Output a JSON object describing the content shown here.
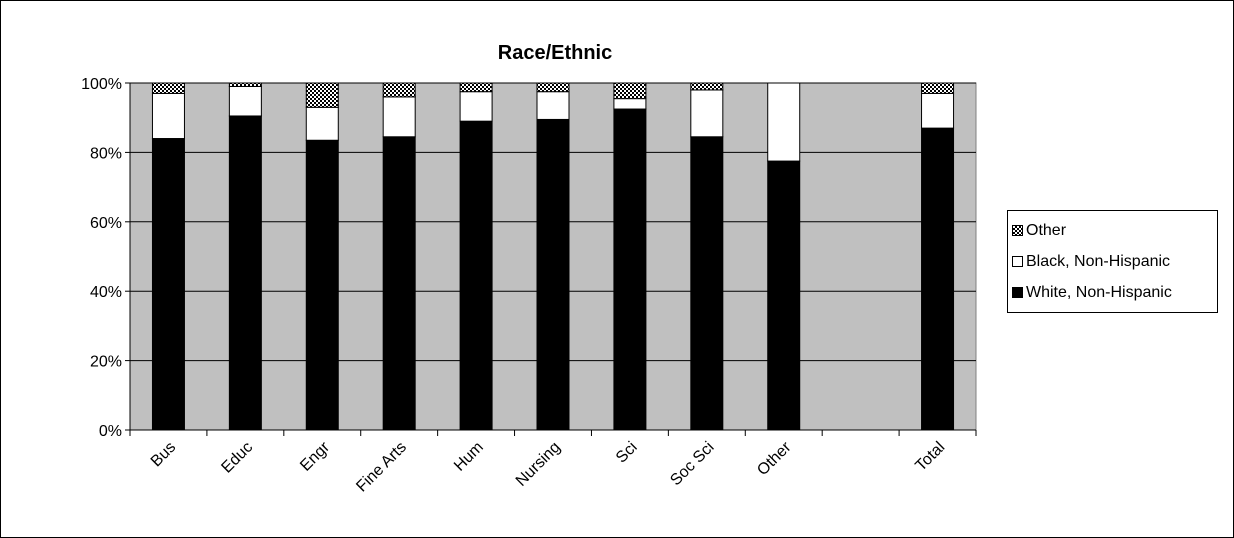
{
  "chart_data": {
    "type": "bar",
    "stacked": true,
    "title": "Race/Ethnic",
    "categories": [
      "Bus",
      "Educ",
      "Engr",
      "Fine Arts",
      "Hum",
      "Nursing",
      "Sci",
      "Soc Sci",
      "Other",
      "",
      "Total"
    ],
    "series": [
      {
        "name": "White, Non-Hispanic",
        "color": "#000000",
        "values": [
          84,
          90.5,
          83.5,
          84.5,
          89,
          89.5,
          92.5,
          84.5,
          77.5,
          0,
          87
        ]
      },
      {
        "name": "Black, Non-Hispanic",
        "color": "#ffffff",
        "values": [
          13,
          8.5,
          9.5,
          11.5,
          8.5,
          8,
          3,
          13.5,
          22.5,
          0,
          10
        ]
      },
      {
        "name": "Other",
        "color": "checkered",
        "values": [
          3,
          1,
          7,
          4,
          2.5,
          2.5,
          4.5,
          2,
          0,
          0,
          3
        ]
      }
    ],
    "ylim": [
      0,
      100
    ],
    "yticks": [
      "0%",
      "20%",
      "40%",
      "60%",
      "80%",
      "100%"
    ],
    "legend_position": "right",
    "legend_order": [
      "Other",
      "Black, Non-Hispanic",
      "White, Non-Hispanic"
    ],
    "grid": true,
    "plot_background": "#c0c0c0"
  }
}
